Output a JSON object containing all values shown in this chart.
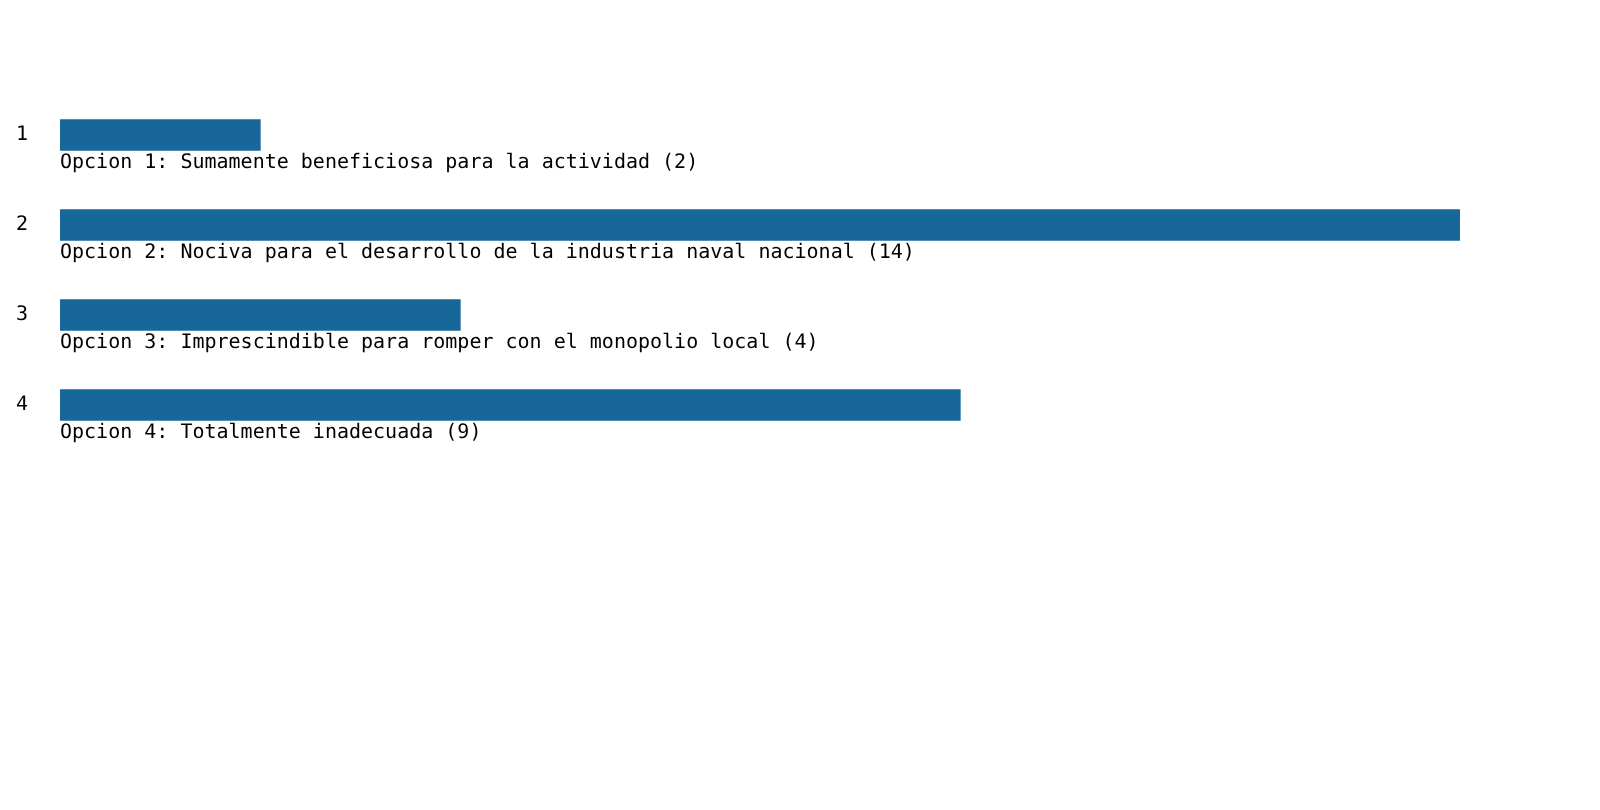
{
  "chart_data": {
    "type": "bar",
    "orientation": "horizontal",
    "categories": [
      "1",
      "2",
      "3",
      "4"
    ],
    "values": [
      2,
      14,
      4,
      9
    ],
    "value_labels": [
      "Opcion 1: Sumamente beneficiosa para la actividad (2)",
      "Opcion 2: Nociva para el desarrollo de la industria naval nacional (14)",
      "Opcion 3: Imprescindible para romper con el monopolio local (4)",
      "Opcion 4: Totalmente inadecuada (9)"
    ],
    "color": "#17679b",
    "xlim": [
      0,
      14
    ],
    "tick_labels": "y",
    "legend": false
  }
}
